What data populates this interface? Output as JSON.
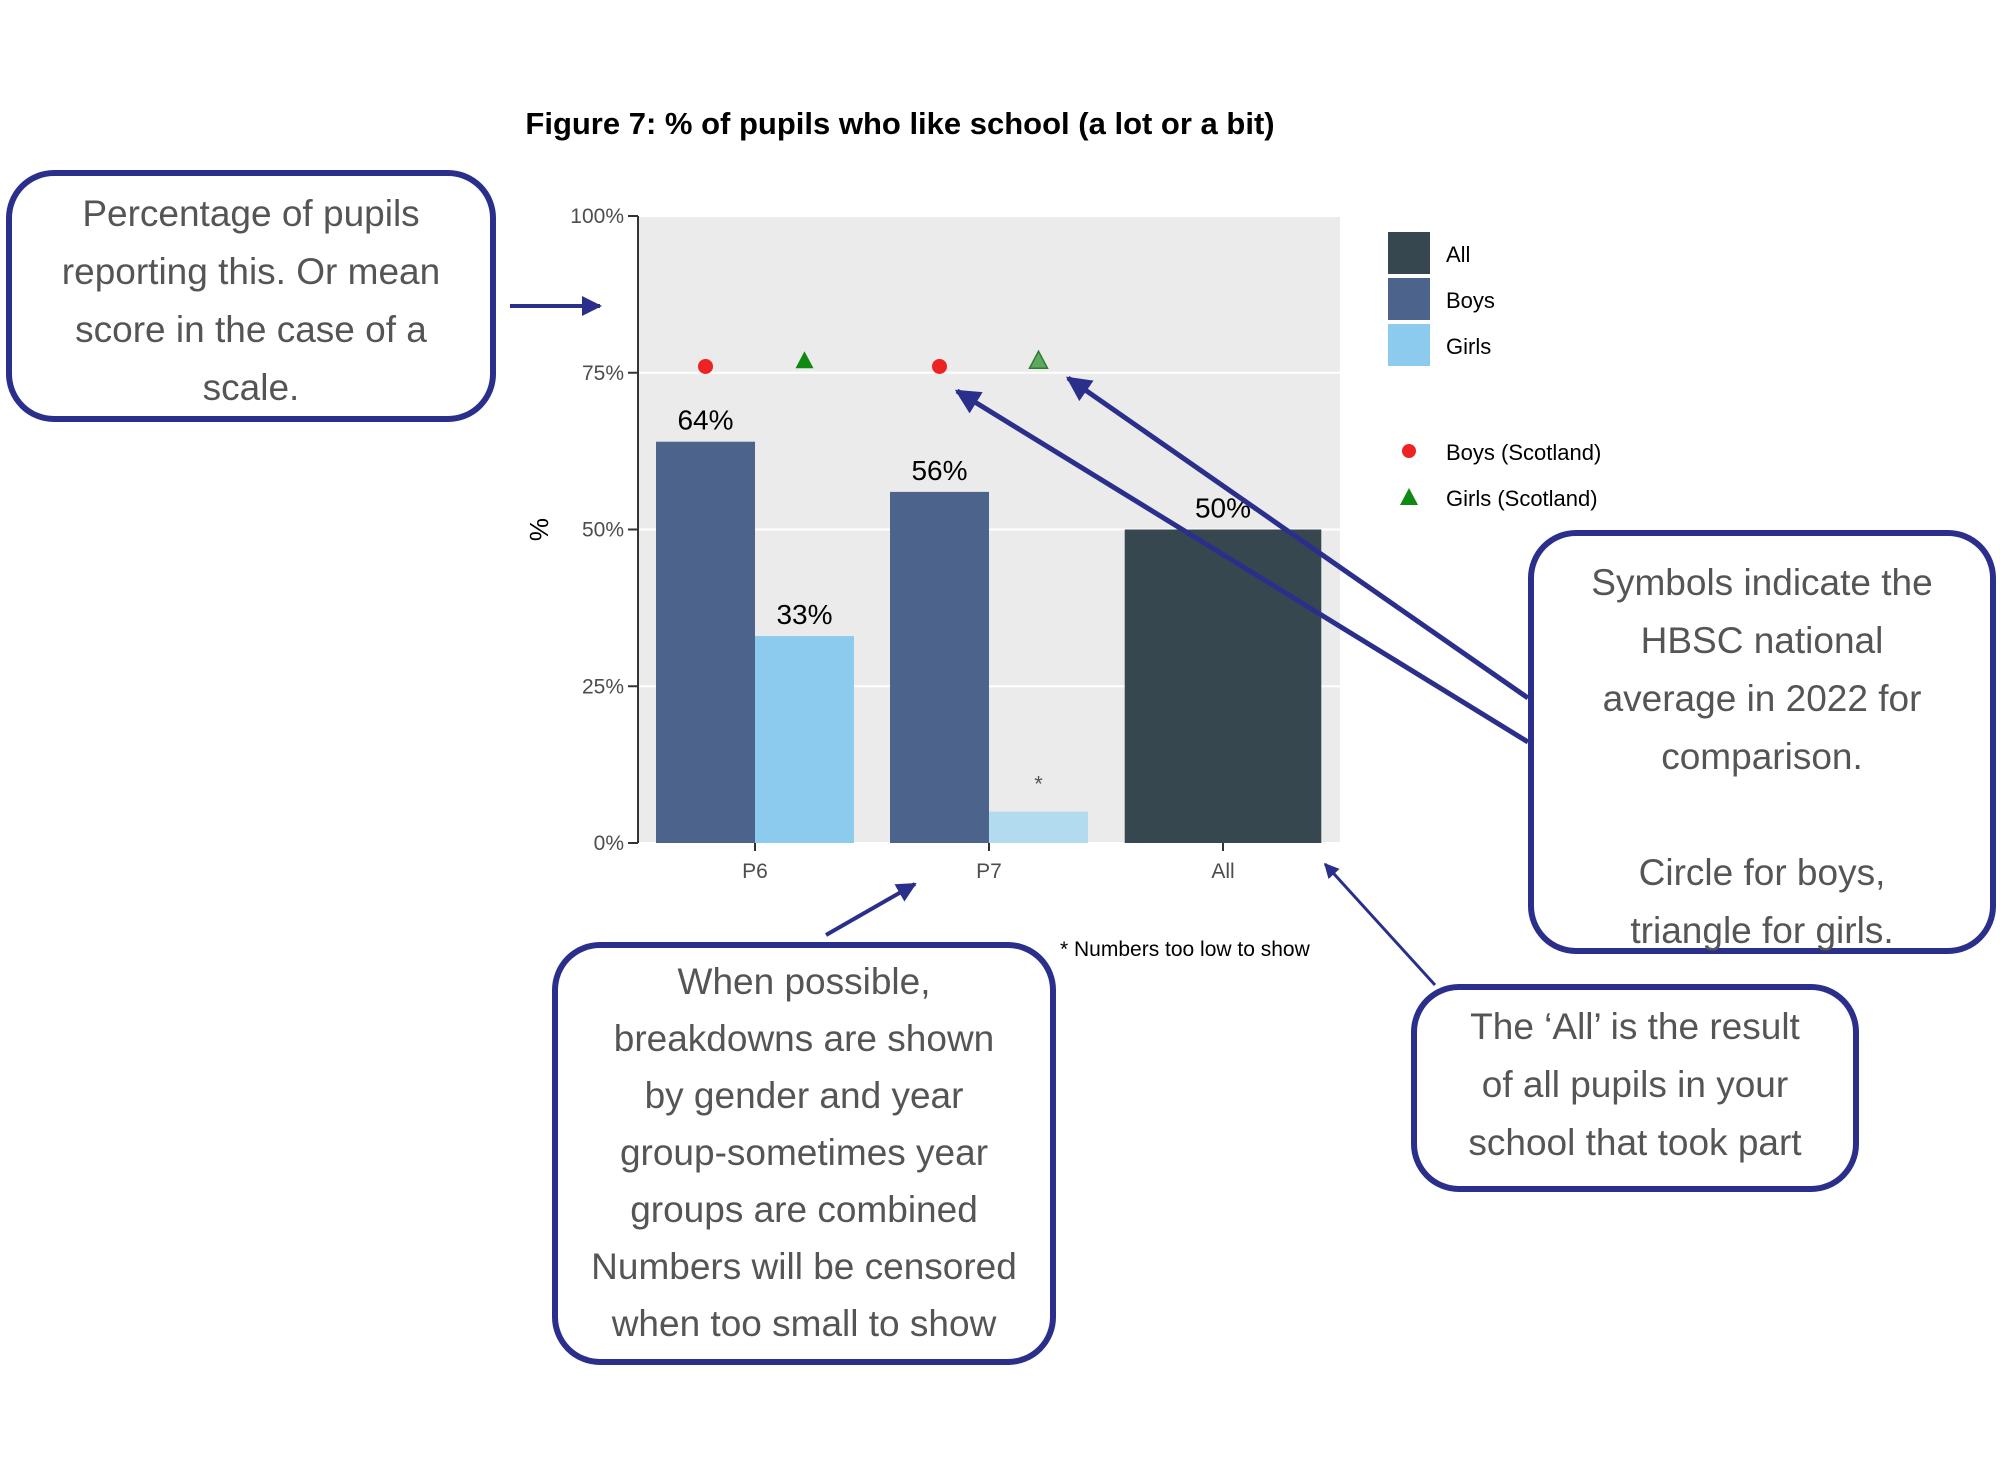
{
  "title": "Figure 7: % of pupils who like school (a lot or a bit)",
  "colors": {
    "all": "#36474f",
    "boys": "#4c648c",
    "girls": "#8ccbed",
    "girls_censored": "#b3dbf0",
    "panel": "#ebebeb",
    "boys_scotland": "#ee2222",
    "girls_scotland": "#118811",
    "girls_scotland_faded": "#5fa85f",
    "callout_border": "#2b2f8c",
    "arrow": "#2b2f8c"
  },
  "chart_data": {
    "type": "bar",
    "title": "Figure 7: % of pupils who like school (a lot or a bit)",
    "xlabel": "",
    "ylabel": "%",
    "ylim": [
      0,
      100
    ],
    "y_ticks": [
      {
        "value": 0,
        "label": "0%"
      },
      {
        "value": 25,
        "label": "25%"
      },
      {
        "value": 50,
        "label": "50%"
      },
      {
        "value": 75,
        "label": "75%"
      },
      {
        "value": 100,
        "label": "100%"
      }
    ],
    "categories": [
      "P6",
      "P7",
      "All"
    ],
    "series": [
      {
        "name": "All",
        "color_key": "all",
        "values": [
          null,
          null,
          50
        ],
        "labels": [
          null,
          null,
          "50%"
        ]
      },
      {
        "name": "Boys",
        "color_key": "boys",
        "values": [
          64,
          56,
          null
        ],
        "labels": [
          "64%",
          "56%",
          null
        ]
      },
      {
        "name": "Girls",
        "color_key": "girls",
        "values": [
          33,
          5,
          null
        ],
        "labels": [
          "33%",
          "*",
          null
        ],
        "censored": [
          false,
          true,
          false
        ]
      }
    ],
    "reference_points": [
      {
        "name": "Boys (Scotland)",
        "shape": "circle",
        "values": [
          76,
          76,
          null
        ]
      },
      {
        "name": "Girls (Scotland)",
        "shape": "triangle",
        "values": [
          77,
          77,
          null
        ]
      }
    ],
    "legend": {
      "position": "right",
      "bar_entries": [
        "All",
        "Boys",
        "Girls"
      ],
      "point_entries": [
        "Boys (Scotland)",
        "Girls (Scotland)"
      ]
    },
    "footnote": "* Numbers too low to show"
  },
  "callouts": {
    "y_axis": "Percentage of pupils\nreporting this. Or mean\nscore in the case of a\nscale.",
    "symbols": "Symbols indicate the\nHBSC national\naverage in 2022 for\ncomparison.\n\nCircle for boys,\ntriangle for girls.",
    "breakdowns": "When possible,\nbreakdowns are shown\nby gender and year\ngroup-sometimes year\ngroups are combined\nNumbers will be censored\nwhen too small to show",
    "all": "The ‘All’ is the result\nof all pupils in your\nschool that took part"
  }
}
